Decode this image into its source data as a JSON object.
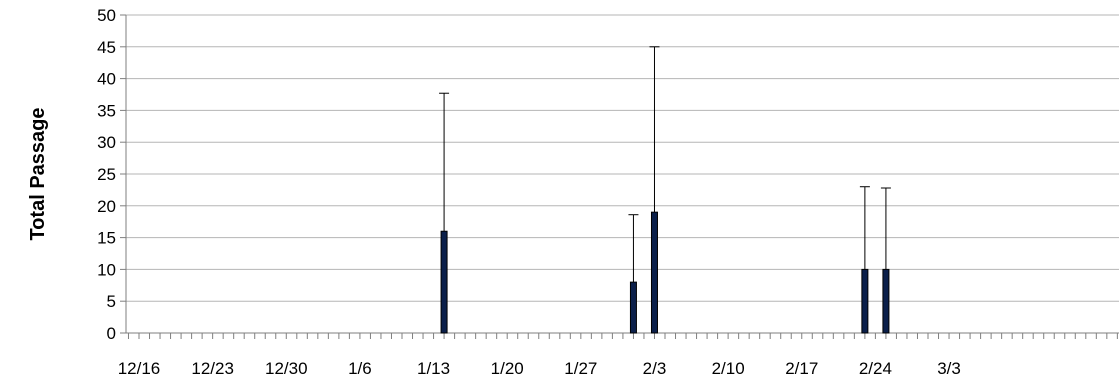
{
  "chart_data": {
    "type": "bar",
    "title": "",
    "xlabel": "",
    "ylabel": "Total Passage",
    "ylim": [
      0,
      50
    ],
    "y_ticks": [
      0,
      5,
      10,
      15,
      20,
      25,
      30,
      35,
      40,
      45,
      50
    ],
    "x_tick_labels": [
      "12/16",
      "12/23",
      "12/30",
      "1/6",
      "1/13",
      "1/20",
      "1/27",
      "2/3",
      "2/10",
      "2/17",
      "2/24",
      "3/3"
    ],
    "x_range_dates": [
      "12/16",
      "3/8"
    ],
    "grid": "horizontal",
    "bar_color": "#0b1f4a",
    "points": [
      {
        "date": "1/14",
        "value": 16,
        "upper": 37.7
      },
      {
        "date": "2/1",
        "value": 8,
        "upper": 18.6
      },
      {
        "date": "2/3",
        "value": 19,
        "upper": 45
      },
      {
        "date": "2/23",
        "value": 10,
        "upper": 23
      },
      {
        "date": "2/25",
        "value": 10,
        "upper": 22.8
      }
    ]
  }
}
